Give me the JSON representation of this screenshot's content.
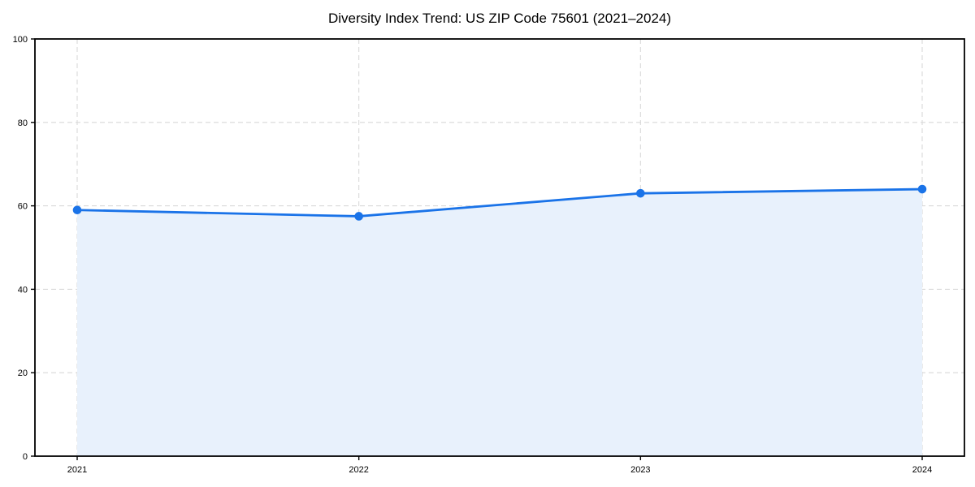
{
  "chart_data": {
    "type": "area",
    "title": "Diversity Index Trend: US ZIP Code 75601 (2021–2024)",
    "categories": [
      "2021",
      "2022",
      "2023",
      "2024"
    ],
    "series": [
      {
        "name": "Diversity Index",
        "values": [
          59,
          57.5,
          63,
          64
        ]
      }
    ],
    "xlabel": "",
    "ylabel": "",
    "ylim": [
      0,
      100
    ],
    "yticks": [
      0,
      20,
      40,
      60,
      80,
      100
    ],
    "grid": true,
    "grid_style": "dashed",
    "legend": "none",
    "marker": "circle",
    "colors": {
      "line": "#1a73e8",
      "marker": "#1a73e8",
      "fill": "#e8f1fc",
      "grid": "#d9d9d9",
      "spine": "#000000",
      "tick_text": "#000000",
      "background": "#ffffff"
    }
  }
}
